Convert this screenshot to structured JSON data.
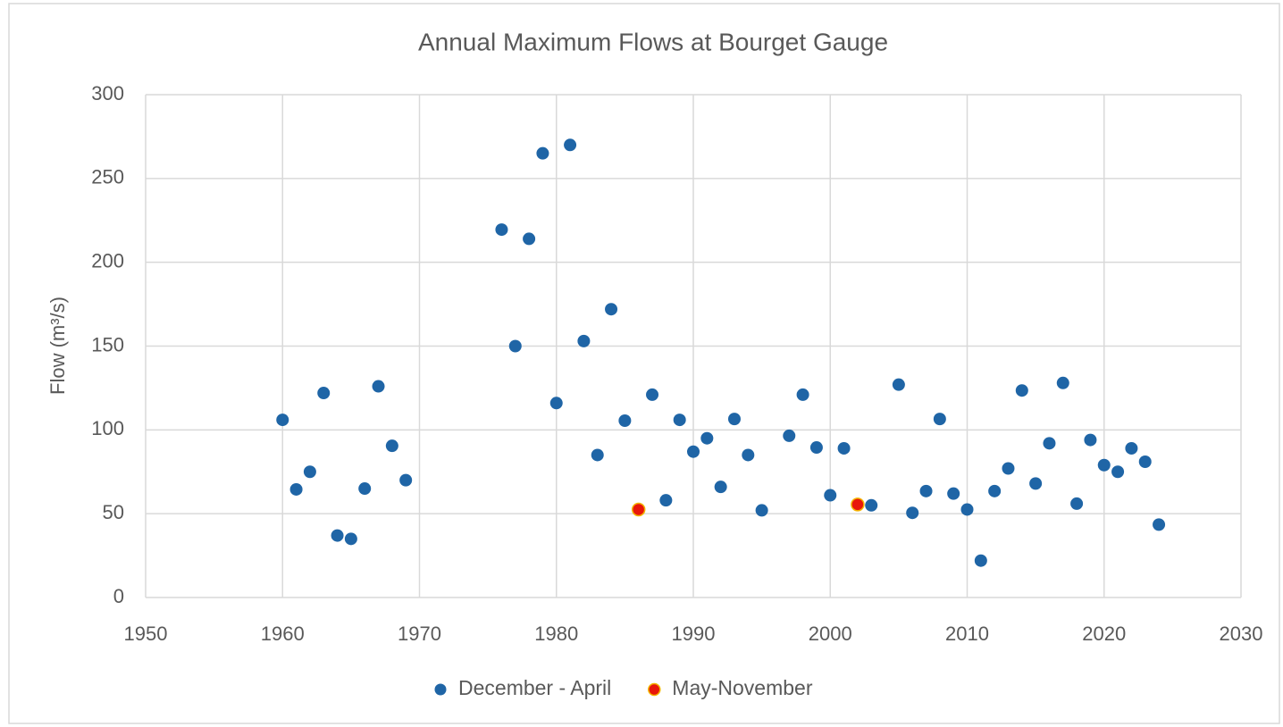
{
  "chart_data": {
    "type": "scatter",
    "title": "Annual Maximum Flows at Bourget Gauge",
    "y_label": "Flow (m³/s)",
    "xlim": [
      1950,
      2030
    ],
    "xticks": [
      1950,
      1960,
      1970,
      1980,
      1990,
      2000,
      2010,
      2020,
      2030
    ],
    "ylim": [
      0,
      300
    ],
    "yticks": [
      0,
      50,
      100,
      150,
      200,
      250,
      300
    ],
    "grid": true,
    "legend": "bottom",
    "series": [
      {
        "name": "December - April",
        "color": "#1f65a6",
        "x": [
          1960,
          1961,
          1962,
          1963,
          1964,
          1965,
          1966,
          1967,
          1968,
          1969,
          1976,
          1977,
          1978,
          1979,
          1980,
          1981,
          1982,
          1983,
          1984,
          1985,
          1987,
          1988,
          1989,
          1990,
          1991,
          1992,
          1993,
          1994,
          1995,
          1997,
          1998,
          1999,
          2000,
          2001,
          2003,
          2005,
          2006,
          2007,
          2008,
          2009,
          2010,
          2011,
          2012,
          2013,
          2014,
          2015,
          2016,
          2017,
          2018,
          2019,
          2020,
          2021,
          2022,
          2023,
          2024
        ],
        "values": [
          106,
          64.5,
          75,
          122,
          37,
          35,
          65,
          126,
          90.5,
          70,
          219.5,
          150,
          214,
          265,
          116,
          270,
          153,
          85,
          172,
          105.5,
          121,
          58,
          106,
          87,
          95,
          66,
          106.5,
          85,
          52,
          96.5,
          121,
          89.5,
          61,
          89,
          55,
          127,
          50.5,
          63.5,
          106.5,
          62,
          52.5,
          22,
          63.5,
          77,
          123.5,
          68,
          92,
          128,
          56,
          94,
          79,
          75,
          89,
          81,
          43.5
        ]
      },
      {
        "name": "May-November",
        "color": "#e8170a",
        "x": [
          1986,
          2002
        ],
        "values": [
          52.5,
          55.5
        ]
      }
    ]
  }
}
